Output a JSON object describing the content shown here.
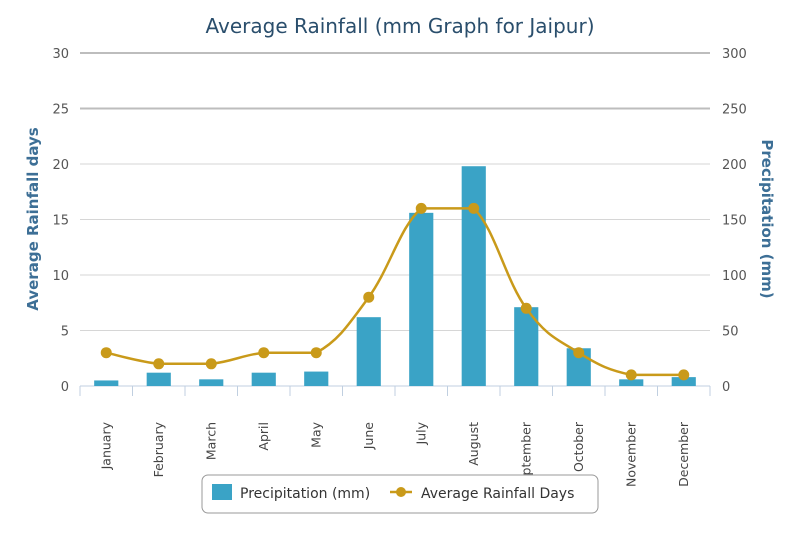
{
  "chart_data": {
    "type": "bar",
    "title": "Average Rainfall (mm Graph for Jaipur)",
    "categories": [
      "January",
      "February",
      "March",
      "April",
      "May",
      "June",
      "July",
      "August",
      "September",
      "October",
      "November",
      "December"
    ],
    "series": [
      {
        "name": "Precipitation (mm)",
        "type": "bar",
        "axis": "right",
        "color": "#3aa3c6",
        "values": [
          5,
          12,
          6,
          12,
          13,
          62,
          156,
          198,
          71,
          34,
          6,
          8
        ]
      },
      {
        "name": "Average Rainfall Days",
        "type": "line",
        "axis": "left",
        "color": "#c99a1a",
        "values": [
          3,
          2,
          2,
          3,
          3,
          8,
          16,
          16,
          7,
          3,
          1,
          1
        ]
      }
    ],
    "y_left": {
      "label": "Average Rainfall days",
      "range": [
        0,
        30
      ],
      "ticks": [
        "0",
        "5",
        "10",
        "15",
        "20",
        "25",
        "30"
      ]
    },
    "y_right": {
      "label": "Precipitation (mm)",
      "range": [
        0,
        300
      ],
      "ticks": [
        "0",
        "50",
        "100",
        "150",
        "200",
        "250",
        "300"
      ]
    },
    "grid": true,
    "legend_position": "bottom-center"
  }
}
